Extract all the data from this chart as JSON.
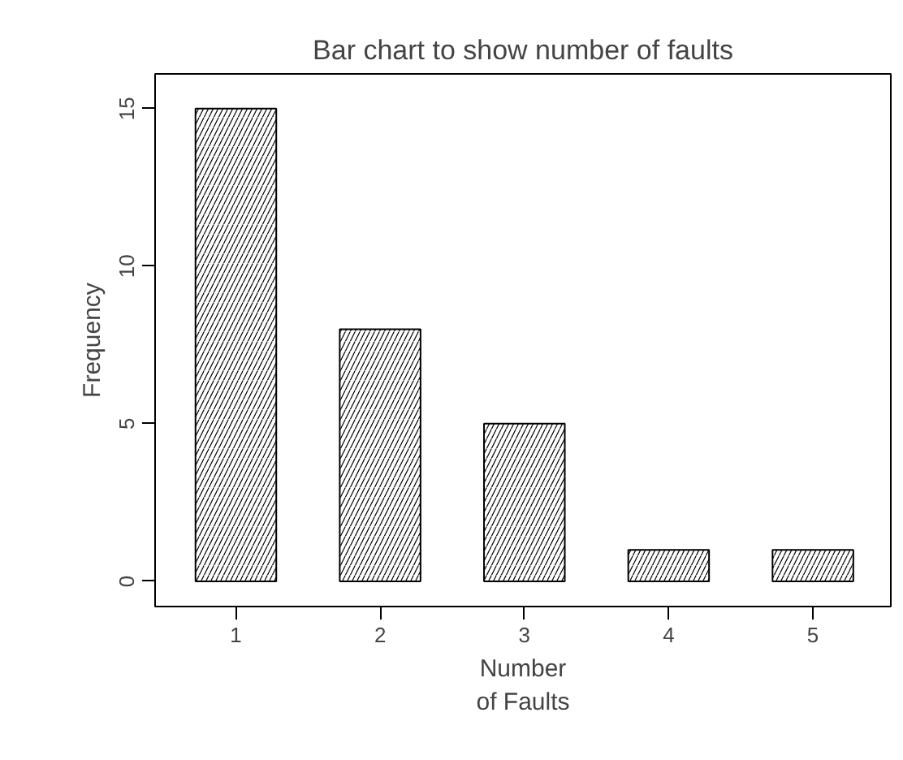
{
  "chart_data": {
    "type": "bar",
    "title": "Bar chart to show number of faults",
    "xlabel": "Number\nof Faults",
    "ylabel": "Frequency",
    "categories": [
      "1",
      "2",
      "3",
      "4",
      "5"
    ],
    "values": [
      15,
      8,
      5,
      1,
      1
    ],
    "color": "#ffffff",
    "ylim": [
      -0.8,
      16.1
    ],
    "yticks": [
      0,
      5,
      10,
      15
    ],
    "grid": false
  }
}
